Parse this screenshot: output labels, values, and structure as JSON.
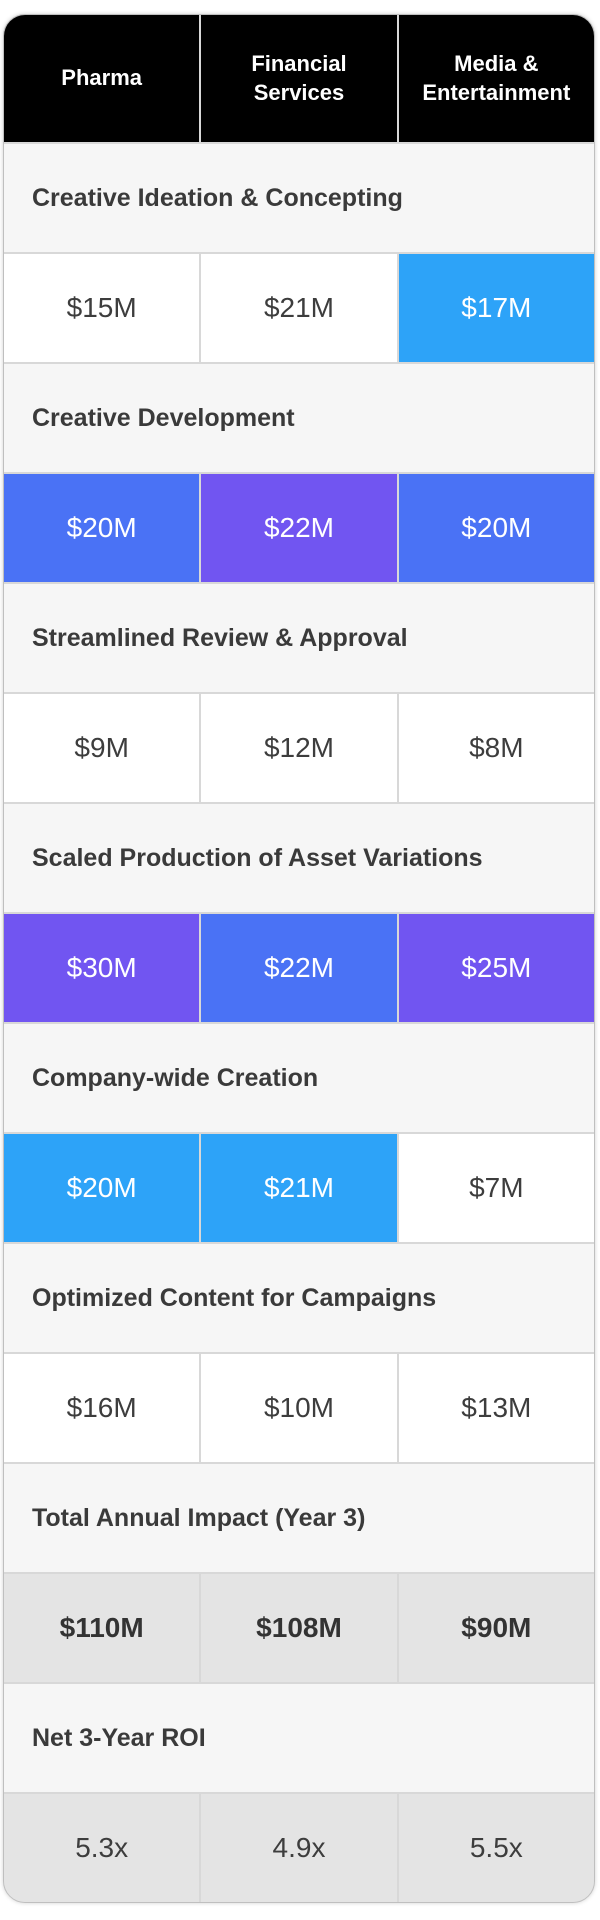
{
  "palette": {
    "header_bg": "#000000",
    "header_text": "#ffffff",
    "section_bg": "#f6f6f6",
    "cell_bg": "#ffffff",
    "light_blue": "#2da3f8",
    "royal_blue": "#4a72f5",
    "purple": "#7155f1",
    "total": "#e4e4e4",
    "grid_line": "#d8d8d8",
    "text_dark": "#3d3d3d"
  },
  "chart_data": {
    "type": "table",
    "columns": [
      "Pharma",
      "Financial Services",
      "Media & Entertainment"
    ],
    "rows": [
      {
        "label": "Creative Ideation & Concepting",
        "values": [
          "$15M",
          "$21M",
          "$17M"
        ],
        "highlights": [
          null,
          null,
          "light_blue"
        ],
        "values_bold": false
      },
      {
        "label": "Creative Development",
        "values": [
          "$20M",
          "$22M",
          "$20M"
        ],
        "highlights": [
          "royal_blue",
          "purple",
          "royal_blue"
        ],
        "values_bold": false
      },
      {
        "label": "Streamlined Review & Approval",
        "values": [
          "$9M",
          "$12M",
          "$8M"
        ],
        "highlights": [
          null,
          null,
          null
        ],
        "values_bold": false
      },
      {
        "label": "Scaled Production of Asset Variations",
        "values": [
          "$30M",
          "$22M",
          "$25M"
        ],
        "highlights": [
          "purple",
          "royal_blue",
          "purple"
        ],
        "values_bold": false
      },
      {
        "label": "Company-wide Creation",
        "values": [
          "$20M",
          "$21M",
          "$7M"
        ],
        "highlights": [
          "light_blue",
          "light_blue",
          null
        ],
        "values_bold": false
      },
      {
        "label": "Optimized Content for Campaigns",
        "values": [
          "$16M",
          "$10M",
          "$13M"
        ],
        "highlights": [
          null,
          null,
          null
        ],
        "values_bold": false
      },
      {
        "label": "Total Annual Impact (Year 3)",
        "values": [
          "$110M",
          "$108M",
          "$90M"
        ],
        "highlights": [
          "total",
          "total",
          "total"
        ],
        "values_bold": true
      },
      {
        "label": "Net 3-Year ROI",
        "values": [
          "5.3x",
          "4.9x",
          "5.5x"
        ],
        "highlights": [
          "total",
          "total",
          "total"
        ],
        "values_bold": false
      }
    ]
  }
}
